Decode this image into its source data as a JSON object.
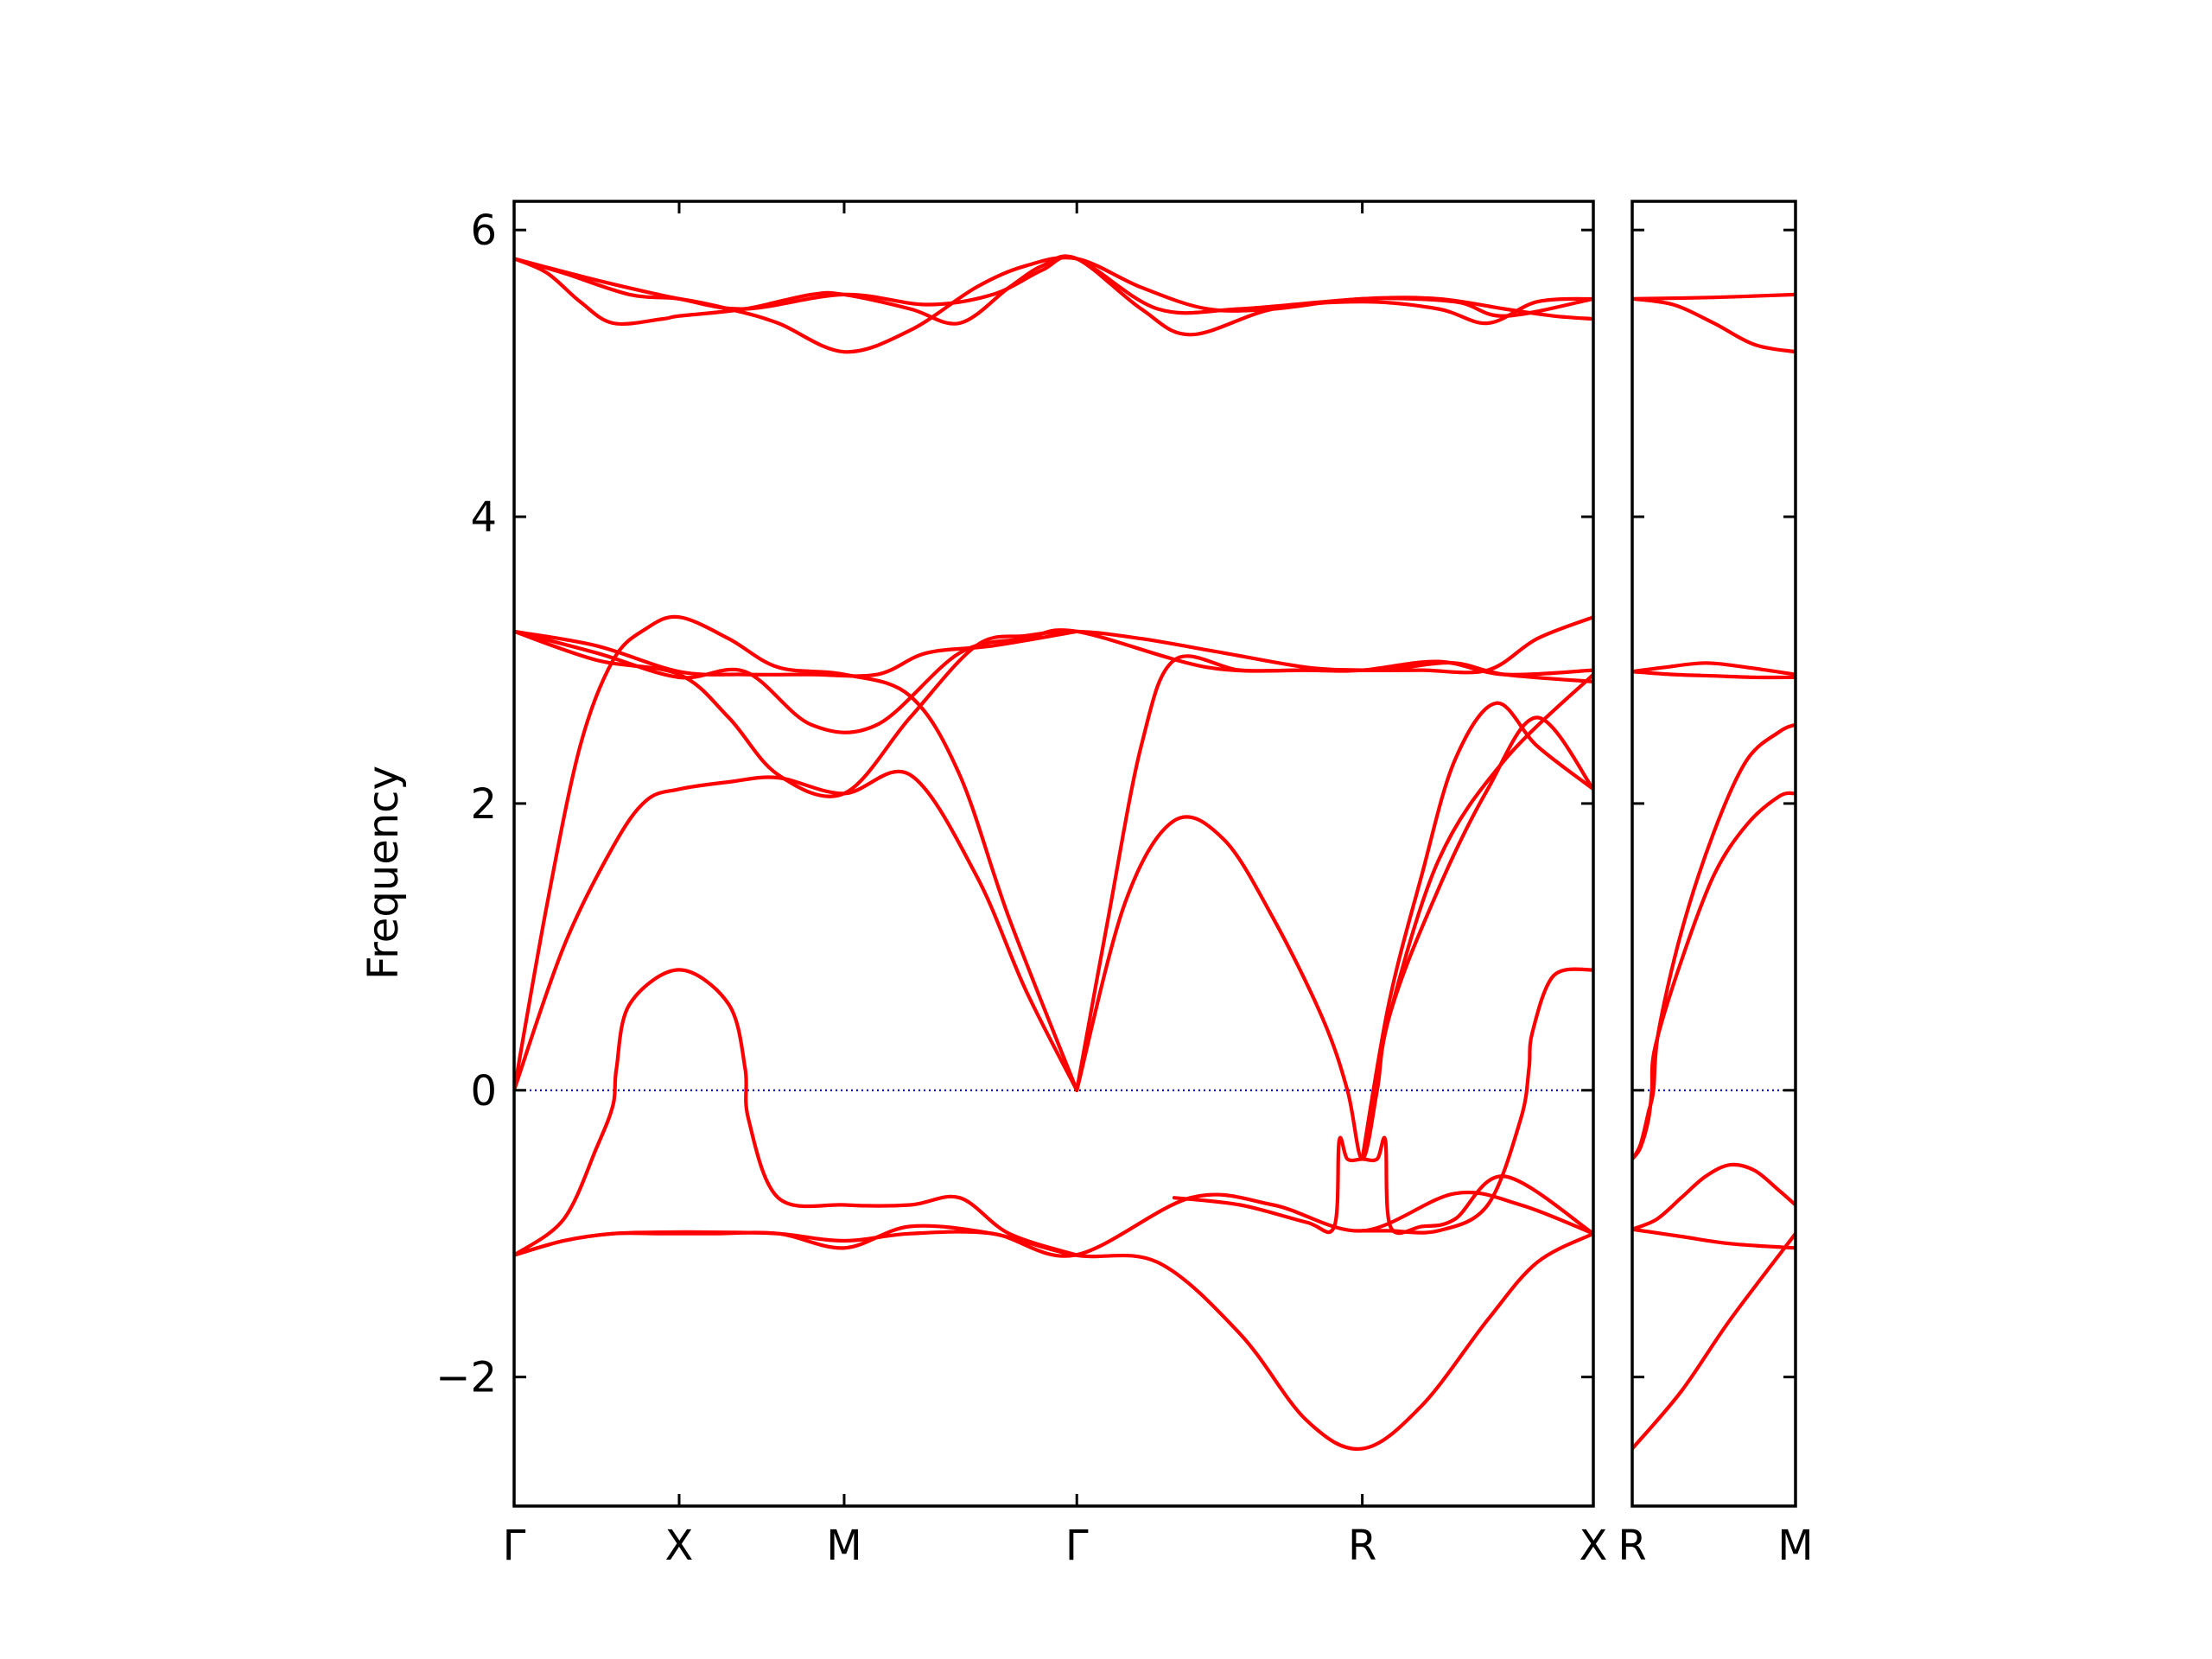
{
  "chart_data": {
    "type": "line",
    "title": "",
    "ylabel": "Frequency",
    "ylim": [
      -2.9,
      6.2
    ],
    "yticks": [
      -2,
      0,
      2,
      4,
      6
    ],
    "ytick_labels": [
      "−2",
      "0",
      "2",
      "4",
      "6"
    ],
    "grid": false,
    "line_color": "#ff0000",
    "zero_line_color": "#0000cc",
    "panels": [
      {
        "xlim": [
          0,
          6.54
        ],
        "xticks": [
          {
            "x": 0,
            "label": "Γ"
          },
          {
            "x": 1.0,
            "label": "X"
          },
          {
            "x": 2.0,
            "label": "M"
          },
          {
            "x": 3.41,
            "label": "Γ"
          },
          {
            "x": 5.14,
            "label": "R"
          },
          {
            "x": 6.54,
            "label": "X"
          }
        ],
        "bands": [
          {
            "x": [
              0,
              0.3,
              0.6,
              0.9,
              1.2,
              1.6,
              2.0,
              2.4,
              2.9,
              3.4,
              4.1,
              4.6,
              5.14,
              5.7,
              6.1,
              6.54
            ],
            "y": [
              -1.15,
              -1.05,
              -1.0,
              -0.99,
              -0.99,
              -1.0,
              -1.05,
              -1.0,
              -1.0,
              -1.15,
              -0.75,
              -0.8,
              -0.98,
              -0.72,
              -0.8,
              -1.0
            ]
          },
          {
            "x": [
              0,
              0.3,
              0.6,
              0.9,
              1.2,
              1.6,
              2.0,
              2.4,
              2.9,
              3.4,
              3.9,
              4.4,
              4.8,
              5.14,
              5.5,
              5.9,
              6.2,
              6.54
            ],
            "y": [
              -1.15,
              -1.05,
              -1.0,
              -1.0,
              -1.0,
              -1.0,
              -1.1,
              -0.95,
              -1.0,
              -1.15,
              -1.2,
              -1.7,
              -2.3,
              -2.5,
              -2.2,
              -1.6,
              -1.2,
              -1.0
            ]
          },
          {
            "x": [
              0,
              0.3,
              0.5,
              0.6,
              0.62,
              0.7,
              1.0,
              1.3,
              1.4,
              1.42,
              1.6,
              2.0,
              2.4,
              2.7,
              3.0,
              3.41
            ],
            "y": [
              -1.15,
              -0.9,
              -0.4,
              -0.1,
              0.15,
              0.6,
              0.84,
              0.6,
              0.15,
              -0.2,
              -0.75,
              -0.8,
              -0.8,
              -0.75,
              -1.0,
              -1.15
            ]
          },
          {
            "x": [
              4.0,
              4.4,
              4.8,
              4.97,
              5.0,
              5.05,
              5.14,
              5.23,
              5.28,
              5.31,
              5.5,
              5.7,
              6.0,
              6.54
            ],
            "y": [
              -0.75,
              -0.8,
              -0.92,
              -0.95,
              -0.35,
              -0.48,
              -0.48,
              -0.48,
              -0.35,
              -0.95,
              -0.95,
              -0.9,
              -0.6,
              -1.0
            ]
          },
          {
            "x": [
              5.14,
              5.3,
              5.6,
              5.9,
              6.1,
              6.15,
              6.17,
              6.3,
              6.54
            ],
            "y": [
              -0.98,
              -0.98,
              -0.98,
              -0.8,
              -0.2,
              0.15,
              0.4,
              0.8,
              0.84
            ]
          },
          {
            "x": [
              0,
              0.3,
              0.6,
              0.8,
              1.0,
              1.3,
              1.6,
              2.0,
              2.4,
              2.8,
              3.1,
              3.41
            ],
            "y": [
              0,
              1.0,
              1.7,
              2.02,
              2.1,
              2.15,
              2.18,
              2.07,
              2.2,
              1.5,
              0.7,
              0
            ]
          },
          {
            "x": [
              0,
              0.2,
              0.4,
              0.6,
              0.8,
              1.0,
              1.3,
              1.6,
              2.0,
              2.4,
              2.7,
              3.0,
              3.41
            ],
            "y": [
              0,
              1.3,
              2.4,
              3.0,
              3.22,
              3.3,
              3.15,
              2.95,
              2.9,
              2.75,
              2.2,
              1.2,
              0
            ]
          },
          {
            "x": [
              3.41,
              3.7,
              4.0,
              4.3,
              4.6,
              4.9,
              5.05,
              5.14,
              5.23,
              5.3,
              5.6,
              6.0,
              6.54
            ],
            "y": [
              0,
              1.3,
              1.88,
              1.75,
              1.2,
              0.5,
              0.0,
              -0.48,
              0.0,
              0.5,
              1.6,
              2.3,
              2.9
            ]
          },
          {
            "x": [
              3.41,
              3.6,
              3.8,
              4.0,
              4.4,
              4.8,
              5.05,
              5.14,
              5.23,
              5.4,
              5.7,
              6.0,
              6.54
            ],
            "y": [
              0,
              1.2,
              2.4,
              3.0,
              2.93,
              2.93,
              2.93,
              2.93,
              2.93,
              2.95,
              2.98,
              2.9,
              2.85
            ]
          },
          {
            "x": [
              5.14,
              5.3,
              5.5,
              5.7,
              5.95,
              6.2,
              6.54
            ],
            "y": [
              -0.48,
              0.6,
              1.5,
              2.3,
              2.7,
              2.4,
              2.1
            ]
          },
          {
            "x": [
              5.14,
              5.3,
              5.6,
              5.9,
              6.2,
              6.54
            ],
            "y": [
              -0.48,
              0.5,
              1.4,
              2.1,
              2.6,
              2.1
            ]
          },
          {
            "x": [
              0,
              0.5,
              1.0,
              1.4,
              1.8,
              2.2,
              2.7,
              3.1,
              3.41,
              4.2,
              4.8,
              5.14,
              5.6,
              6.0,
              6.54
            ],
            "y": [
              3.2,
              3.05,
              2.88,
              2.92,
              2.55,
              2.55,
              3.05,
              3.15,
              3.2,
              2.95,
              2.93,
              2.93,
              2.99,
              2.9,
              2.93
            ]
          },
          {
            "x": [
              0,
              0.5,
              1.0,
              1.3,
              1.6,
              2.0,
              2.4,
              2.8,
              3.1,
              3.41,
              3.8,
              4.3,
              4.8,
              5.14,
              5.5,
              5.9,
              6.2,
              6.54
            ],
            "y": [
              3.2,
              3.0,
              2.9,
              2.6,
              2.2,
              2.07,
              2.6,
              3.1,
              3.17,
              3.2,
              3.15,
              3.05,
              2.95,
              2.93,
              2.93,
              2.93,
              3.15,
              3.3
            ]
          },
          {
            "x": [
              0,
              0.5,
              1.0,
              1.4,
              1.8,
              2.2,
              2.5,
              2.9,
              3.41
            ],
            "y": [
              3.2,
              3.1,
              2.92,
              2.9,
              2.9,
              2.9,
              3.05,
              3.1,
              3.2
            ]
          },
          {
            "x": [
              0,
              0.3,
              0.7,
              1.0,
              1.3,
              1.6,
              2.0,
              2.4,
              2.8,
              3.1,
              3.41,
              3.8,
              4.2,
              4.6,
              5.14,
              5.7,
              6.0,
              6.54
            ],
            "y": [
              5.8,
              5.7,
              5.55,
              5.52,
              5.45,
              5.35,
              5.15,
              5.3,
              5.6,
              5.75,
              5.8,
              5.6,
              5.45,
              5.45,
              5.52,
              5.5,
              5.4,
              5.52
            ]
          },
          {
            "x": [
              0,
              0.2,
              0.4,
              0.6,
              0.9,
              1.0,
              1.4,
              1.8,
              2.0,
              2.4,
              2.7,
              3.0,
              3.2,
              3.41,
              3.8,
              4.1,
              4.6,
              5.14,
              5.6,
              5.9,
              6.2,
              6.54
            ],
            "y": [
              5.8,
              5.7,
              5.5,
              5.35,
              5.38,
              5.4,
              5.45,
              5.55,
              5.55,
              5.45,
              5.35,
              5.6,
              5.75,
              5.8,
              5.45,
              5.27,
              5.45,
              5.5,
              5.45,
              5.35,
              5.5,
              5.52
            ]
          },
          {
            "x": [
              0,
              0.5,
              1.0,
              1.4,
              2.0,
              2.5,
              2.9,
              3.2,
              3.41,
              3.9,
              4.4,
              5.14,
              5.6,
              6.0,
              6.3,
              6.54
            ],
            "y": [
              5.8,
              5.65,
              5.52,
              5.45,
              5.55,
              5.48,
              5.55,
              5.72,
              5.8,
              5.45,
              5.45,
              5.52,
              5.52,
              5.45,
              5.4,
              5.38
            ]
          }
        ]
      },
      {
        "xlim": [
          0,
          1.0
        ],
        "xticks": [
          {
            "x": 0,
            "label": "R"
          },
          {
            "x": 1.0,
            "label": "M"
          }
        ],
        "bands": [
          {
            "x": [
              0,
              0.3,
              0.6,
              1.0
            ],
            "y": [
              -2.5,
              -2.1,
              -1.6,
              -1.0
            ]
          },
          {
            "x": [
              0,
              0.3,
              0.6,
              1.0
            ],
            "y": [
              -0.97,
              -1.02,
              -1.07,
              -1.1
            ]
          },
          {
            "x": [
              0,
              0.15,
              0.3,
              0.45,
              0.6,
              0.75,
              0.9,
              1.0
            ],
            "y": [
              -0.97,
              -0.9,
              -0.75,
              -0.6,
              -0.52,
              -0.56,
              -0.7,
              -0.8
            ]
          },
          {
            "x": [
              0,
              0.05,
              0.1,
              0.12,
              0.14,
              0.3,
              0.5,
              0.7,
              0.9,
              1.0
            ],
            "y": [
              -0.48,
              -0.4,
              -0.2,
              0.0,
              0.3,
              0.9,
              1.5,
              1.85,
              2.05,
              2.07
            ]
          },
          {
            "x": [
              0,
              0.05,
              0.1,
              0.13,
              0.16,
              0.3,
              0.5,
              0.7,
              0.9,
              1.0
            ],
            "y": [
              -0.48,
              -0.38,
              -0.15,
              0.0,
              0.4,
              1.1,
              1.8,
              2.3,
              2.5,
              2.55
            ]
          },
          {
            "x": [
              0,
              0.25,
              0.5,
              0.75,
              1.0
            ],
            "y": [
              2.92,
              2.9,
              2.89,
              2.88,
              2.88
            ]
          },
          {
            "x": [
              0,
              0.2,
              0.45,
              0.7,
              1.0
            ],
            "y": [
              2.92,
              2.95,
              2.98,
              2.95,
              2.9
            ]
          },
          {
            "x": [
              0,
              0.5,
              1.0
            ],
            "y": [
              5.52,
              5.53,
              5.55
            ]
          },
          {
            "x": [
              0,
              0.25,
              0.5,
              0.75,
              1.0
            ],
            "y": [
              5.52,
              5.48,
              5.35,
              5.2,
              5.15
            ]
          }
        ]
      }
    ]
  }
}
